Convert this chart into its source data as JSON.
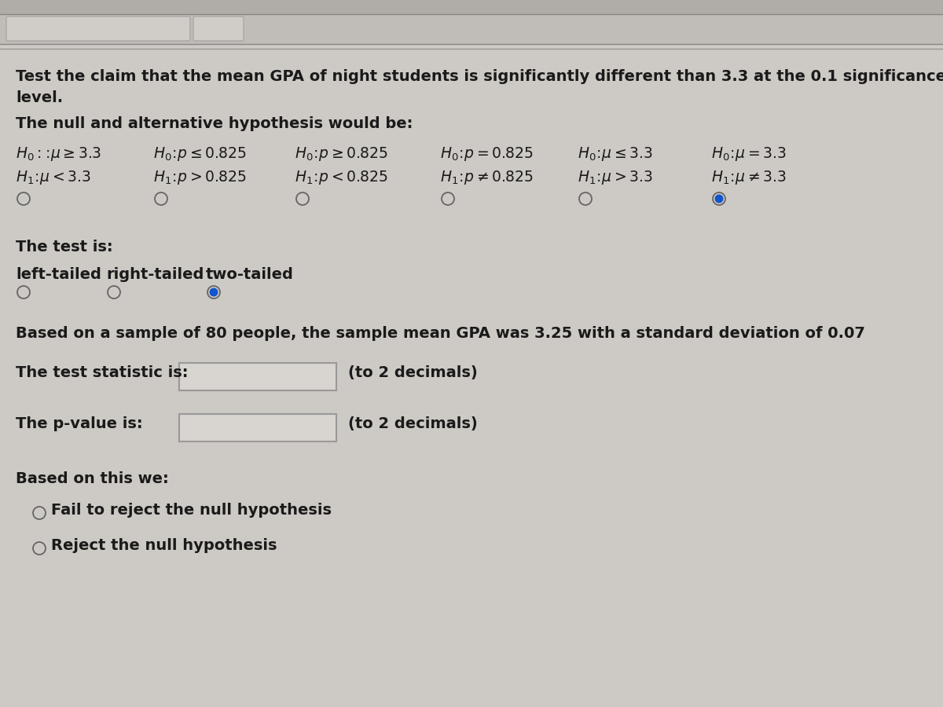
{
  "bg_color": "#cdc9c4",
  "toolbar_color": "#b8b4af",
  "toolbar_line_color": "#9a9690",
  "text_color": "#1a1a1a",
  "title_text1": "Test the claim that the mean GPA of night students is significantly different than 3.3 at the 0.1 significance",
  "title_text2": "level.",
  "hyp_label": "The null and alternative hypothesis would be:",
  "test_label": "The test is:",
  "sample_text": "Based on a sample of 80 people, the sample mean GPA was 3.25 with a standard deviation of 0.07",
  "stat_label": "The test statistic is:",
  "pval_label": "The p-value is:",
  "decimal_note": "(to 2 decimals)",
  "conclusion_label": "Based on this we:",
  "option1": "Fail to reject the null hypothesis",
  "option2": "Reject the null hypothesis",
  "radio_hyp_selected": 5,
  "test_selected": 2,
  "hyp1_items": [
    "$H_0:\\!:\\!\\mu \\geq 3.3$",
    "$H_0\\!:\\!p \\leq 0.825$",
    "$H_0\\!:\\!p \\geq 0.825$",
    "$H_0\\!:\\!p = 0.825$",
    "$H_0\\!:\\!\\mu \\leq 3.3$",
    "$H_0\\!:\\!\\mu = 3.3$"
  ],
  "hyp2_items": [
    "$H_1\\!:\\!\\mu < 3.3$",
    "$H_1\\!:\\!p > 0.825$",
    "$H_1\\!:\\!p < 0.825$",
    "$H_1\\!:\\!p \\neq 0.825$",
    "$H_1\\!:\\!\\mu > 3.3$",
    "$H_1\\!:\\!\\mu \\neq 3.3$"
  ],
  "test_options": [
    "left-tailed",
    "right-tailed",
    "two-tailed"
  ],
  "radio_color_empty": "#666666",
  "radio_color_filled": "#1155cc",
  "box_facecolor": "#d8d4cf",
  "box_edgecolor": "#999999"
}
